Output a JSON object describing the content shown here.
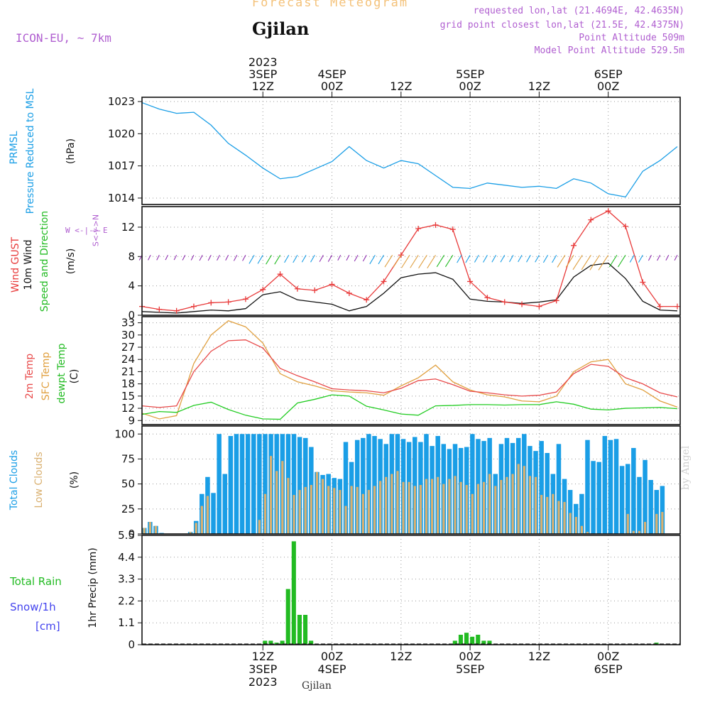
{
  "header": {
    "product": "Forecast Meteogram",
    "station": "Gjilan",
    "model": "ICON-EU, ~ 7km",
    "requested": "requested lon,lat (21.4694E, 42.4635N)",
    "grid_point": "grid point closest lon,lat (21.5E, 42.4375N)",
    "point_altitude": "Point Altitude 509m",
    "model_altitude": "Model Point Altitude 529.5m",
    "footer_station": "Gjilan",
    "watermark": "by Angel"
  },
  "colors": {
    "pressure": "#1a9ee6",
    "gust": "#e83a3a",
    "wind": "#111111",
    "temp2m": "#e84a4a",
    "sfc": "#e0a040",
    "dewpt": "#22cc22",
    "total_clouds": "#1a9ee6",
    "low_clouds": "#d9b070",
    "rain": "#22bb22",
    "snow": "#4444ee",
    "purple": "#b05fd0"
  },
  "time_axis": {
    "top_labels": [
      {
        "lines": [
          "2023",
          "3SEP",
          "12Z"
        ]
      },
      {
        "lines": [
          "4SEP",
          "00Z"
        ]
      },
      {
        "lines": [
          "12Z"
        ]
      },
      {
        "lines": [
          "5SEP",
          "00Z"
        ]
      },
      {
        "lines": [
          "12Z"
        ]
      },
      {
        "lines": [
          "6SEP",
          "00Z"
        ]
      }
    ],
    "bottom_labels": [
      {
        "lines": [
          "12Z",
          "3SEP",
          "2023"
        ]
      },
      {
        "lines": [
          "00Z",
          "4SEP"
        ]
      },
      {
        "lines": [
          "12Z"
        ]
      },
      {
        "lines": [
          "00Z",
          "5SEP"
        ]
      },
      {
        "lines": [
          "12Z"
        ]
      },
      {
        "lines": [
          "00Z",
          "6SEP"
        ]
      }
    ],
    "tick_hours": [
      21,
      33,
      45,
      57,
      69,
      81
    ]
  },
  "panel_labels": {
    "pressure": {
      "title1": "PRMSL",
      "title2": "Pressure Reduced to MSL",
      "unit": "(hPa)"
    },
    "wind": {
      "gust": "Wind GUST",
      "wind10": "10m Wind",
      "speed_dir": "Speed and Direction",
      "unit": "(m/s)",
      "compass": "W <-|-> E",
      "compass_v": "S<-|->N"
    },
    "temp": {
      "t2m": "2m Temp",
      "sfc": "SFC Temp",
      "dewpt": "dewpt Temp",
      "unit": "(C)"
    },
    "clouds": {
      "total": "Total Clouds",
      "low": "Low Clouds",
      "unit": "(%)"
    },
    "precip": {
      "rain": "Total Rain",
      "snow": "Snow/1h",
      "snow_unit": "[cm]",
      "ylabel": "1hr Precip (mm)"
    }
  },
  "chart_data": [
    {
      "type": "line",
      "title": "PRMSL Pressure Reduced to MSL",
      "ylabel": "(hPa)",
      "ylim": [
        1013.4,
        1023.4
      ],
      "yticks": [
        1014,
        1017,
        1020,
        1023
      ],
      "x_hours": [
        0,
        3,
        6,
        9,
        12,
        15,
        18,
        21,
        24,
        27,
        30,
        33,
        36,
        39,
        42,
        45,
        48,
        51,
        54,
        57,
        60,
        63,
        66,
        69,
        72,
        75,
        78,
        81,
        84,
        87,
        90,
        93
      ],
      "series": [
        {
          "name": "PRMSL",
          "values": [
            1022.9,
            1022.3,
            1021.9,
            1022.0,
            1020.8,
            1019.1,
            1018.0,
            1016.8,
            1015.8,
            1016.0,
            1016.7,
            1017.4,
            1018.8,
            1017.5,
            1016.8,
            1017.5,
            1017.2,
            1016.1,
            1015.0,
            1014.9,
            1015.4,
            1015.2,
            1015.0,
            1015.1,
            1014.9,
            1015.8,
            1015.4,
            1014.4,
            1014.1,
            1016.5,
            1017.5,
            1018.8
          ]
        }
      ]
    },
    {
      "type": "line",
      "title": "Wind GUST / 10m Wind",
      "ylabel": "(m/s)",
      "ylim": [
        0,
        14.8
      ],
      "yticks": [
        0,
        4,
        8,
        12
      ],
      "x_hours": [
        0,
        3,
        6,
        9,
        12,
        15,
        18,
        21,
        24,
        27,
        30,
        33,
        36,
        39,
        42,
        45,
        48,
        51,
        54,
        57,
        60,
        63,
        66,
        69,
        72,
        75,
        78,
        81,
        84,
        87,
        90,
        93
      ],
      "series": [
        {
          "name": "Wind GUST",
          "values": [
            1.2,
            0.8,
            0.6,
            1.2,
            1.7,
            1.8,
            2.2,
            3.5,
            5.6,
            3.6,
            3.4,
            4.2,
            3.0,
            2.1,
            4.6,
            8.2,
            11.8,
            12.3,
            11.7,
            4.6,
            2.4,
            1.8,
            1.5,
            1.2,
            2.0,
            9.5,
            13.0,
            14.2,
            12.1,
            4.5,
            1.2,
            1.2
          ]
        },
        {
          "name": "10m Wind",
          "values": [
            0.5,
            0.4,
            0.3,
            0.5,
            0.7,
            0.6,
            0.9,
            2.8,
            3.2,
            2.1,
            1.8,
            1.5,
            0.6,
            1.2,
            3.0,
            5.1,
            5.6,
            5.8,
            4.9,
            2.2,
            1.9,
            1.8,
            1.6,
            1.8,
            2.1,
            5.2,
            6.8,
            7.1,
            5.0,
            1.9,
            0.7,
            0.6
          ]
        }
      ],
      "direction_arrows": "wind barbs along 8 m/s line"
    },
    {
      "type": "line",
      "title": "2m Temp / SFC Temp / dewpt Temp",
      "ylabel": "(C)",
      "ylim": [
        8,
        34.5
      ],
      "yticks": [
        9,
        12,
        15,
        18,
        21,
        24,
        27,
        30,
        33
      ],
      "x_hours": [
        0,
        3,
        6,
        9,
        12,
        15,
        18,
        21,
        24,
        27,
        30,
        33,
        36,
        39,
        42,
        45,
        48,
        51,
        54,
        57,
        60,
        63,
        66,
        69,
        72,
        75,
        78,
        81,
        84,
        87,
        90,
        93
      ],
      "series": [
        {
          "name": "2m Temp",
          "values": [
            12.6,
            12.2,
            12.6,
            21.0,
            26.0,
            28.6,
            28.8,
            26.8,
            21.8,
            20.0,
            18.5,
            16.8,
            16.5,
            16.3,
            15.8,
            16.9,
            18.8,
            19.2,
            17.8,
            16.2,
            15.8,
            15.3,
            15.0,
            15.2,
            16.0,
            20.5,
            22.8,
            22.3,
            19.5,
            18.0,
            15.8,
            14.8
          ]
        },
        {
          "name": "SFC Temp",
          "values": [
            10.8,
            9.4,
            10.2,
            23.0,
            30.0,
            33.5,
            32.0,
            28.0,
            20.5,
            18.5,
            17.5,
            16.3,
            16.0,
            15.8,
            15.2,
            17.5,
            19.5,
            22.6,
            18.5,
            16.5,
            15.3,
            14.8,
            13.8,
            13.6,
            15.0,
            21.0,
            23.4,
            24.0,
            18.0,
            16.5,
            13.8,
            12.3
          ]
        },
        {
          "name": "dewpt Temp",
          "values": [
            10.5,
            11.2,
            11.0,
            12.7,
            13.5,
            11.7,
            10.3,
            9.4,
            9.3,
            13.3,
            14.2,
            15.3,
            15.0,
            12.5,
            11.6,
            10.6,
            10.3,
            12.6,
            12.7,
            12.9,
            12.9,
            12.8,
            12.9,
            12.9,
            13.6,
            13.0,
            11.8,
            11.6,
            12.0,
            12.1,
            12.2,
            11.9
          ]
        }
      ]
    },
    {
      "type": "bar",
      "title": "Total Clouds / Low Clouds",
      "ylabel": "(%)",
      "ylim": [
        0,
        108
      ],
      "yticks": [
        0,
        25,
        50,
        75,
        100
      ],
      "x_start_hour": 0,
      "x_step_hours": 1,
      "series": [
        {
          "name": "Total Clouds",
          "values": [
            6,
            12,
            8,
            1,
            0,
            0,
            0,
            0,
            2,
            13,
            40,
            57,
            41,
            100,
            60,
            98,
            100,
            100,
            100,
            100,
            100,
            100,
            100,
            100,
            100,
            100,
            100,
            97,
            96,
            87,
            62,
            59,
            60,
            56,
            55,
            92,
            72,
            94,
            96,
            100,
            98,
            95,
            90,
            100,
            100,
            95,
            92,
            97,
            92,
            100,
            88,
            98,
            90,
            85,
            90,
            86,
            87,
            100,
            95,
            93,
            96,
            60,
            90,
            96,
            91,
            96,
            100,
            88,
            83,
            93,
            81,
            60,
            90,
            55,
            44,
            30,
            40,
            94,
            73,
            72,
            98,
            94,
            95,
            68,
            70,
            86,
            57,
            74,
            54,
            44,
            48
          ]
        },
        {
          "name": "Low Clouds",
          "values": [
            6,
            12,
            8,
            0,
            0,
            0,
            0,
            0,
            2,
            11,
            28,
            38,
            0,
            0,
            0,
            0,
            0,
            0,
            0,
            0,
            14,
            40,
            78,
            63,
            73,
            56,
            39,
            44,
            47,
            49,
            62,
            55,
            48,
            46,
            44,
            28,
            48,
            47,
            40,
            44,
            48,
            53,
            57,
            60,
            63,
            52,
            52,
            48,
            49,
            55,
            55,
            57,
            50,
            55,
            58,
            52,
            49,
            40,
            50,
            52,
            60,
            48,
            54,
            57,
            60,
            70,
            68,
            58,
            57,
            39,
            37,
            40,
            33,
            32,
            21,
            17,
            8,
            2,
            0,
            0,
            0,
            0,
            0,
            0,
            20,
            3,
            3,
            12,
            0,
            20,
            22
          ]
        }
      ]
    },
    {
      "type": "bar",
      "title": "Total Rain",
      "ylabel": "1hr Precip (mm)",
      "ylim": [
        0,
        5.5
      ],
      "yticks": [
        0,
        1.1,
        2.2,
        3.3,
        4.4,
        5.5
      ],
      "x_start_hour": 0,
      "x_step_hours": 1,
      "series": [
        {
          "name": "Total Rain",
          "values": [
            0,
            0,
            0,
            0,
            0,
            0,
            0,
            0,
            0,
            0,
            0,
            0,
            0,
            0,
            0,
            0,
            0,
            0,
            0,
            0,
            0,
            0.2,
            0.2,
            0.1,
            0.2,
            2.8,
            5.2,
            1.5,
            1.5,
            0.2,
            0,
            0,
            0,
            0,
            0,
            0,
            0,
            0,
            0,
            0,
            0,
            0,
            0,
            0,
            0,
            0,
            0,
            0,
            0,
            0,
            0,
            0,
            0,
            0,
            0.2,
            0.5,
            0.6,
            0.4,
            0.5,
            0.2,
            0.2,
            0,
            0,
            0,
            0,
            0,
            0,
            0,
            0,
            0,
            0,
            0,
            0,
            0,
            0,
            0,
            0,
            0,
            0,
            0,
            0,
            0,
            0,
            0,
            0,
            0,
            0,
            0,
            0,
            0.1,
            0,
            0,
            0
          ]
        }
      ]
    }
  ]
}
